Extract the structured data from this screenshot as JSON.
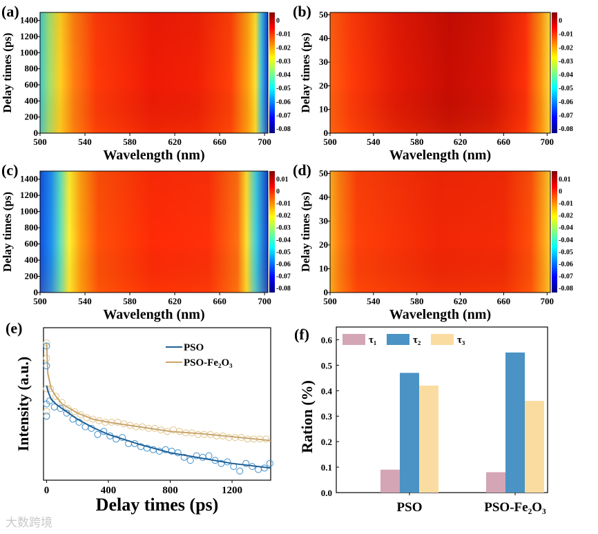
{
  "watermark": "大数跨境",
  "jet": [
    "#7f0000",
    "#ff0000",
    "#ff7f00",
    "#ffff00",
    "#7fff7f",
    "#00ffff",
    "#007fff",
    "#0000ff",
    "#00007f"
  ],
  "heatmaps": [
    {
      "label": "(a)",
      "xlabel": "Wavelength (nm)",
      "ylabel": "Delay times (ps)",
      "xlim": [
        500,
        703
      ],
      "ylim": [
        0,
        1500
      ],
      "xticks": [
        "500",
        "540",
        "580",
        "620",
        "660",
        "700"
      ],
      "yticks": [
        "0",
        "200",
        "400",
        "600",
        "800",
        "1000",
        "1200",
        "1400"
      ],
      "colorbar": [
        "0",
        "-0.01",
        "-0.02",
        "-0.03",
        "-0.04",
        "-0.05",
        "-0.06",
        "-0.07",
        "-0.08"
      ],
      "profile": [
        [
          500,
          "#40c8d0"
        ],
        [
          508,
          "#a0e070"
        ],
        [
          518,
          "#ffd020"
        ],
        [
          530,
          "#ff8010"
        ],
        [
          550,
          "#ff3a08"
        ],
        [
          600,
          "#f01a05"
        ],
        [
          640,
          "#f22005"
        ],
        [
          670,
          "#ff4008"
        ],
        [
          685,
          "#ffa010"
        ],
        [
          692,
          "#ffe030"
        ],
        [
          697,
          "#40c0e0"
        ],
        [
          703,
          "#1040d0"
        ]
      ]
    },
    {
      "label": "(b)",
      "xlabel": "Wavelength (nm)",
      "ylabel": "Delay times (ps)",
      "xlim": [
        500,
        703
      ],
      "ylim": [
        0,
        51
      ],
      "xticks": [
        "500",
        "540",
        "580",
        "620",
        "660",
        "700"
      ],
      "yticks": [
        "0",
        "10",
        "20",
        "30",
        "40",
        "50"
      ],
      "colorbar": [
        "0",
        "-0.01",
        "-0.02",
        "-0.03",
        "-0.04",
        "-0.05",
        "-0.06",
        "-0.07",
        "-0.08"
      ],
      "profile": [
        [
          500,
          "#ff6010"
        ],
        [
          520,
          "#ff3a08"
        ],
        [
          560,
          "#e41a05"
        ],
        [
          610,
          "#c80c03"
        ],
        [
          650,
          "#d81404"
        ],
        [
          680,
          "#ff3008"
        ],
        [
          694,
          "#ff9010"
        ],
        [
          703,
          "#ffe040"
        ]
      ]
    },
    {
      "label": "(c)",
      "xlabel": "Wavelength (nm)",
      "ylabel": "Delay times (ps)",
      "xlim": [
        500,
        703
      ],
      "ylim": [
        0,
        1500
      ],
      "xticks": [
        "500",
        "540",
        "580",
        "620",
        "660",
        "700"
      ],
      "yticks": [
        "0",
        "200",
        "400",
        "600",
        "800",
        "1000",
        "1200",
        "1400"
      ],
      "colorbar": [
        "0.01",
        "0",
        "-0.01",
        "-0.02",
        "-0.03",
        "-0.04",
        "-0.05",
        "-0.06",
        "-0.07",
        "-0.08"
      ],
      "profile": [
        [
          500,
          "#1050e0"
        ],
        [
          510,
          "#2090f0"
        ],
        [
          518,
          "#60e0c0"
        ],
        [
          526,
          "#fff030"
        ],
        [
          536,
          "#ffa010"
        ],
        [
          552,
          "#ff5008"
        ],
        [
          600,
          "#ff2a06"
        ],
        [
          650,
          "#ff3008"
        ],
        [
          676,
          "#ff7010"
        ],
        [
          684,
          "#ffe030"
        ],
        [
          692,
          "#40d0e0"
        ],
        [
          703,
          "#1040d0"
        ]
      ]
    },
    {
      "label": "(d)",
      "xlabel": "Wavelength (nm)",
      "ylabel": "Delay times (ps)",
      "xlim": [
        500,
        703
      ],
      "ylim": [
        0,
        51
      ],
      "xticks": [
        "500",
        "540",
        "580",
        "620",
        "660",
        "700"
      ],
      "yticks": [
        "0",
        "10",
        "20",
        "30",
        "40",
        "50"
      ],
      "colorbar": [
        "0.01",
        "0",
        "-0.01",
        "-0.02",
        "-0.04",
        "-0.04",
        "-0.05",
        "-0.06",
        "-0.07",
        "-0.08"
      ],
      "profile": [
        [
          500,
          "#ffb020"
        ],
        [
          508,
          "#ff8010"
        ],
        [
          525,
          "#ff4008"
        ],
        [
          600,
          "#f22606"
        ],
        [
          660,
          "#f52a06"
        ],
        [
          685,
          "#ff5008"
        ],
        [
          696,
          "#ff9a18"
        ],
        [
          703,
          "#ffd030"
        ]
      ]
    }
  ],
  "chart_data": [
    {
      "type": "heatmap",
      "panel": "(a)",
      "xlabel": "Wavelength (nm)",
      "ylabel": "Delay times (ps)",
      "xlim": [
        500,
        700
      ],
      "ylim": [
        0,
        1500
      ]
    },
    {
      "type": "heatmap",
      "panel": "(b)",
      "xlabel": "Wavelength (nm)",
      "ylabel": "Delay times (ps)",
      "xlim": [
        500,
        700
      ],
      "ylim": [
        0,
        50
      ]
    },
    {
      "type": "heatmap",
      "panel": "(c)",
      "xlabel": "Wavelength (nm)",
      "ylabel": "Delay times (ps)",
      "xlim": [
        500,
        700
      ],
      "ylim": [
        0,
        1500
      ]
    },
    {
      "type": "heatmap",
      "panel": "(d)",
      "xlabel": "Wavelength (nm)",
      "ylabel": "Delay times (ps)",
      "xlim": [
        500,
        700
      ],
      "ylim": [
        0,
        50
      ]
    },
    {
      "type": "scatter",
      "panel": "(e)",
      "xlabel": "Delay times (ps)",
      "ylabel": "Intensity (a.u.)",
      "xlim": [
        -20,
        1450
      ],
      "ylim": [
        0,
        1
      ],
      "xticks": [
        "0",
        "400",
        "800",
        "1200"
      ],
      "series": [
        {
          "name": "PSO",
          "line_color": "#1f5f95",
          "marker_color": "#3d8ec9",
          "fit": [
            [
              0,
              0.62
            ],
            [
              10,
              0.58
            ],
            [
              30,
              0.53
            ],
            [
              60,
              0.5
            ],
            [
              100,
              0.47
            ],
            [
              200,
              0.4
            ],
            [
              300,
              0.345
            ],
            [
              400,
              0.3
            ],
            [
              600,
              0.235
            ],
            [
              800,
              0.18
            ],
            [
              1000,
              0.145
            ],
            [
              1200,
              0.11
            ],
            [
              1450,
              0.08
            ]
          ],
          "points": [
            [
              0,
              0.88
            ],
            [
              0,
              0.75
            ],
            [
              0,
              0.5
            ],
            [
              0,
              0.42
            ],
            [
              20,
              0.52
            ],
            [
              50,
              0.48
            ],
            [
              90,
              0.47
            ],
            [
              130,
              0.44
            ],
            [
              170,
              0.4
            ],
            [
              210,
              0.38
            ],
            [
              250,
              0.35
            ],
            [
              290,
              0.34
            ],
            [
              330,
              0.3
            ],
            [
              370,
              0.32
            ],
            [
              410,
              0.29
            ],
            [
              450,
              0.27
            ],
            [
              490,
              0.28
            ],
            [
              530,
              0.24
            ],
            [
              570,
              0.24
            ],
            [
              610,
              0.22
            ],
            [
              650,
              0.21
            ],
            [
              690,
              0.2
            ],
            [
              730,
              0.19
            ],
            [
              770,
              0.2
            ],
            [
              810,
              0.19
            ],
            [
              850,
              0.18
            ],
            [
              890,
              0.15
            ],
            [
              930,
              0.13
            ],
            [
              970,
              0.16
            ],
            [
              1010,
              0.15
            ],
            [
              1050,
              0.16
            ],
            [
              1090,
              0.13
            ],
            [
              1130,
              0.11
            ],
            [
              1170,
              0.12
            ],
            [
              1210,
              0.09
            ],
            [
              1250,
              0.06
            ],
            [
              1290,
              0.11
            ],
            [
              1330,
              0.09
            ],
            [
              1370,
              0.07
            ],
            [
              1410,
              0.08
            ],
            [
              1445,
              0.11
            ]
          ]
        },
        {
          "name": "PSO-Fe2O3",
          "name_html": "PSO-Fe₂O₃",
          "line_color": "#c9a56e",
          "marker_color": "#e0c48a",
          "fit": [
            [
              0,
              0.9
            ],
            [
              8,
              0.7
            ],
            [
              30,
              0.6
            ],
            [
              60,
              0.55
            ],
            [
              100,
              0.5
            ],
            [
              200,
              0.44
            ],
            [
              300,
              0.4
            ],
            [
              400,
              0.38
            ],
            [
              600,
              0.35
            ],
            [
              800,
              0.32
            ],
            [
              1000,
              0.305
            ],
            [
              1200,
              0.285
            ],
            [
              1450,
              0.26
            ]
          ],
          "points": [
            [
              0,
              0.9
            ],
            [
              0,
              0.8
            ],
            [
              0,
              0.6
            ],
            [
              0,
              0.45
            ],
            [
              0,
              0.42
            ],
            [
              25,
              0.6
            ],
            [
              60,
              0.55
            ],
            [
              100,
              0.51
            ],
            [
              140,
              0.47
            ],
            [
              180,
              0.45
            ],
            [
              220,
              0.43
            ],
            [
              260,
              0.41
            ],
            [
              300,
              0.4
            ],
            [
              340,
              0.39
            ],
            [
              380,
              0.38
            ],
            [
              420,
              0.38
            ],
            [
              460,
              0.38
            ],
            [
              500,
              0.37
            ],
            [
              540,
              0.36
            ],
            [
              580,
              0.35
            ],
            [
              620,
              0.35
            ],
            [
              660,
              0.34
            ],
            [
              700,
              0.34
            ],
            [
              740,
              0.33
            ],
            [
              780,
              0.32
            ],
            [
              820,
              0.33
            ],
            [
              860,
              0.32
            ],
            [
              900,
              0.31
            ],
            [
              940,
              0.31
            ],
            [
              980,
              0.3
            ],
            [
              1020,
              0.3
            ],
            [
              1060,
              0.3
            ],
            [
              1100,
              0.29
            ],
            [
              1140,
              0.29
            ],
            [
              1180,
              0.28
            ],
            [
              1220,
              0.28
            ],
            [
              1260,
              0.28
            ],
            [
              1300,
              0.27
            ],
            [
              1340,
              0.27
            ],
            [
              1380,
              0.27
            ],
            [
              1420,
              0.27
            ]
          ]
        }
      ]
    },
    {
      "type": "bar",
      "panel": "(f)",
      "xlabel": "",
      "ylabel": "Ration (%)",
      "ylim": [
        0,
        0.65
      ],
      "yticks": [
        "0.0",
        "0.1",
        "0.2",
        "0.3",
        "0.4",
        "0.5",
        "0.6"
      ],
      "categories": [
        "PSO",
        "PSO-Fe₂O₃"
      ],
      "legend_position": "top-left",
      "series": [
        {
          "name": "τ₁",
          "color": "#d4a5b5",
          "values": [
            0.09,
            0.08
          ]
        },
        {
          "name": "τ₂",
          "color": "#4a93c4",
          "values": [
            0.47,
            0.55
          ]
        },
        {
          "name": "τ₃",
          "color": "#fbdca0",
          "values": [
            0.42,
            0.36
          ]
        }
      ]
    }
  ]
}
